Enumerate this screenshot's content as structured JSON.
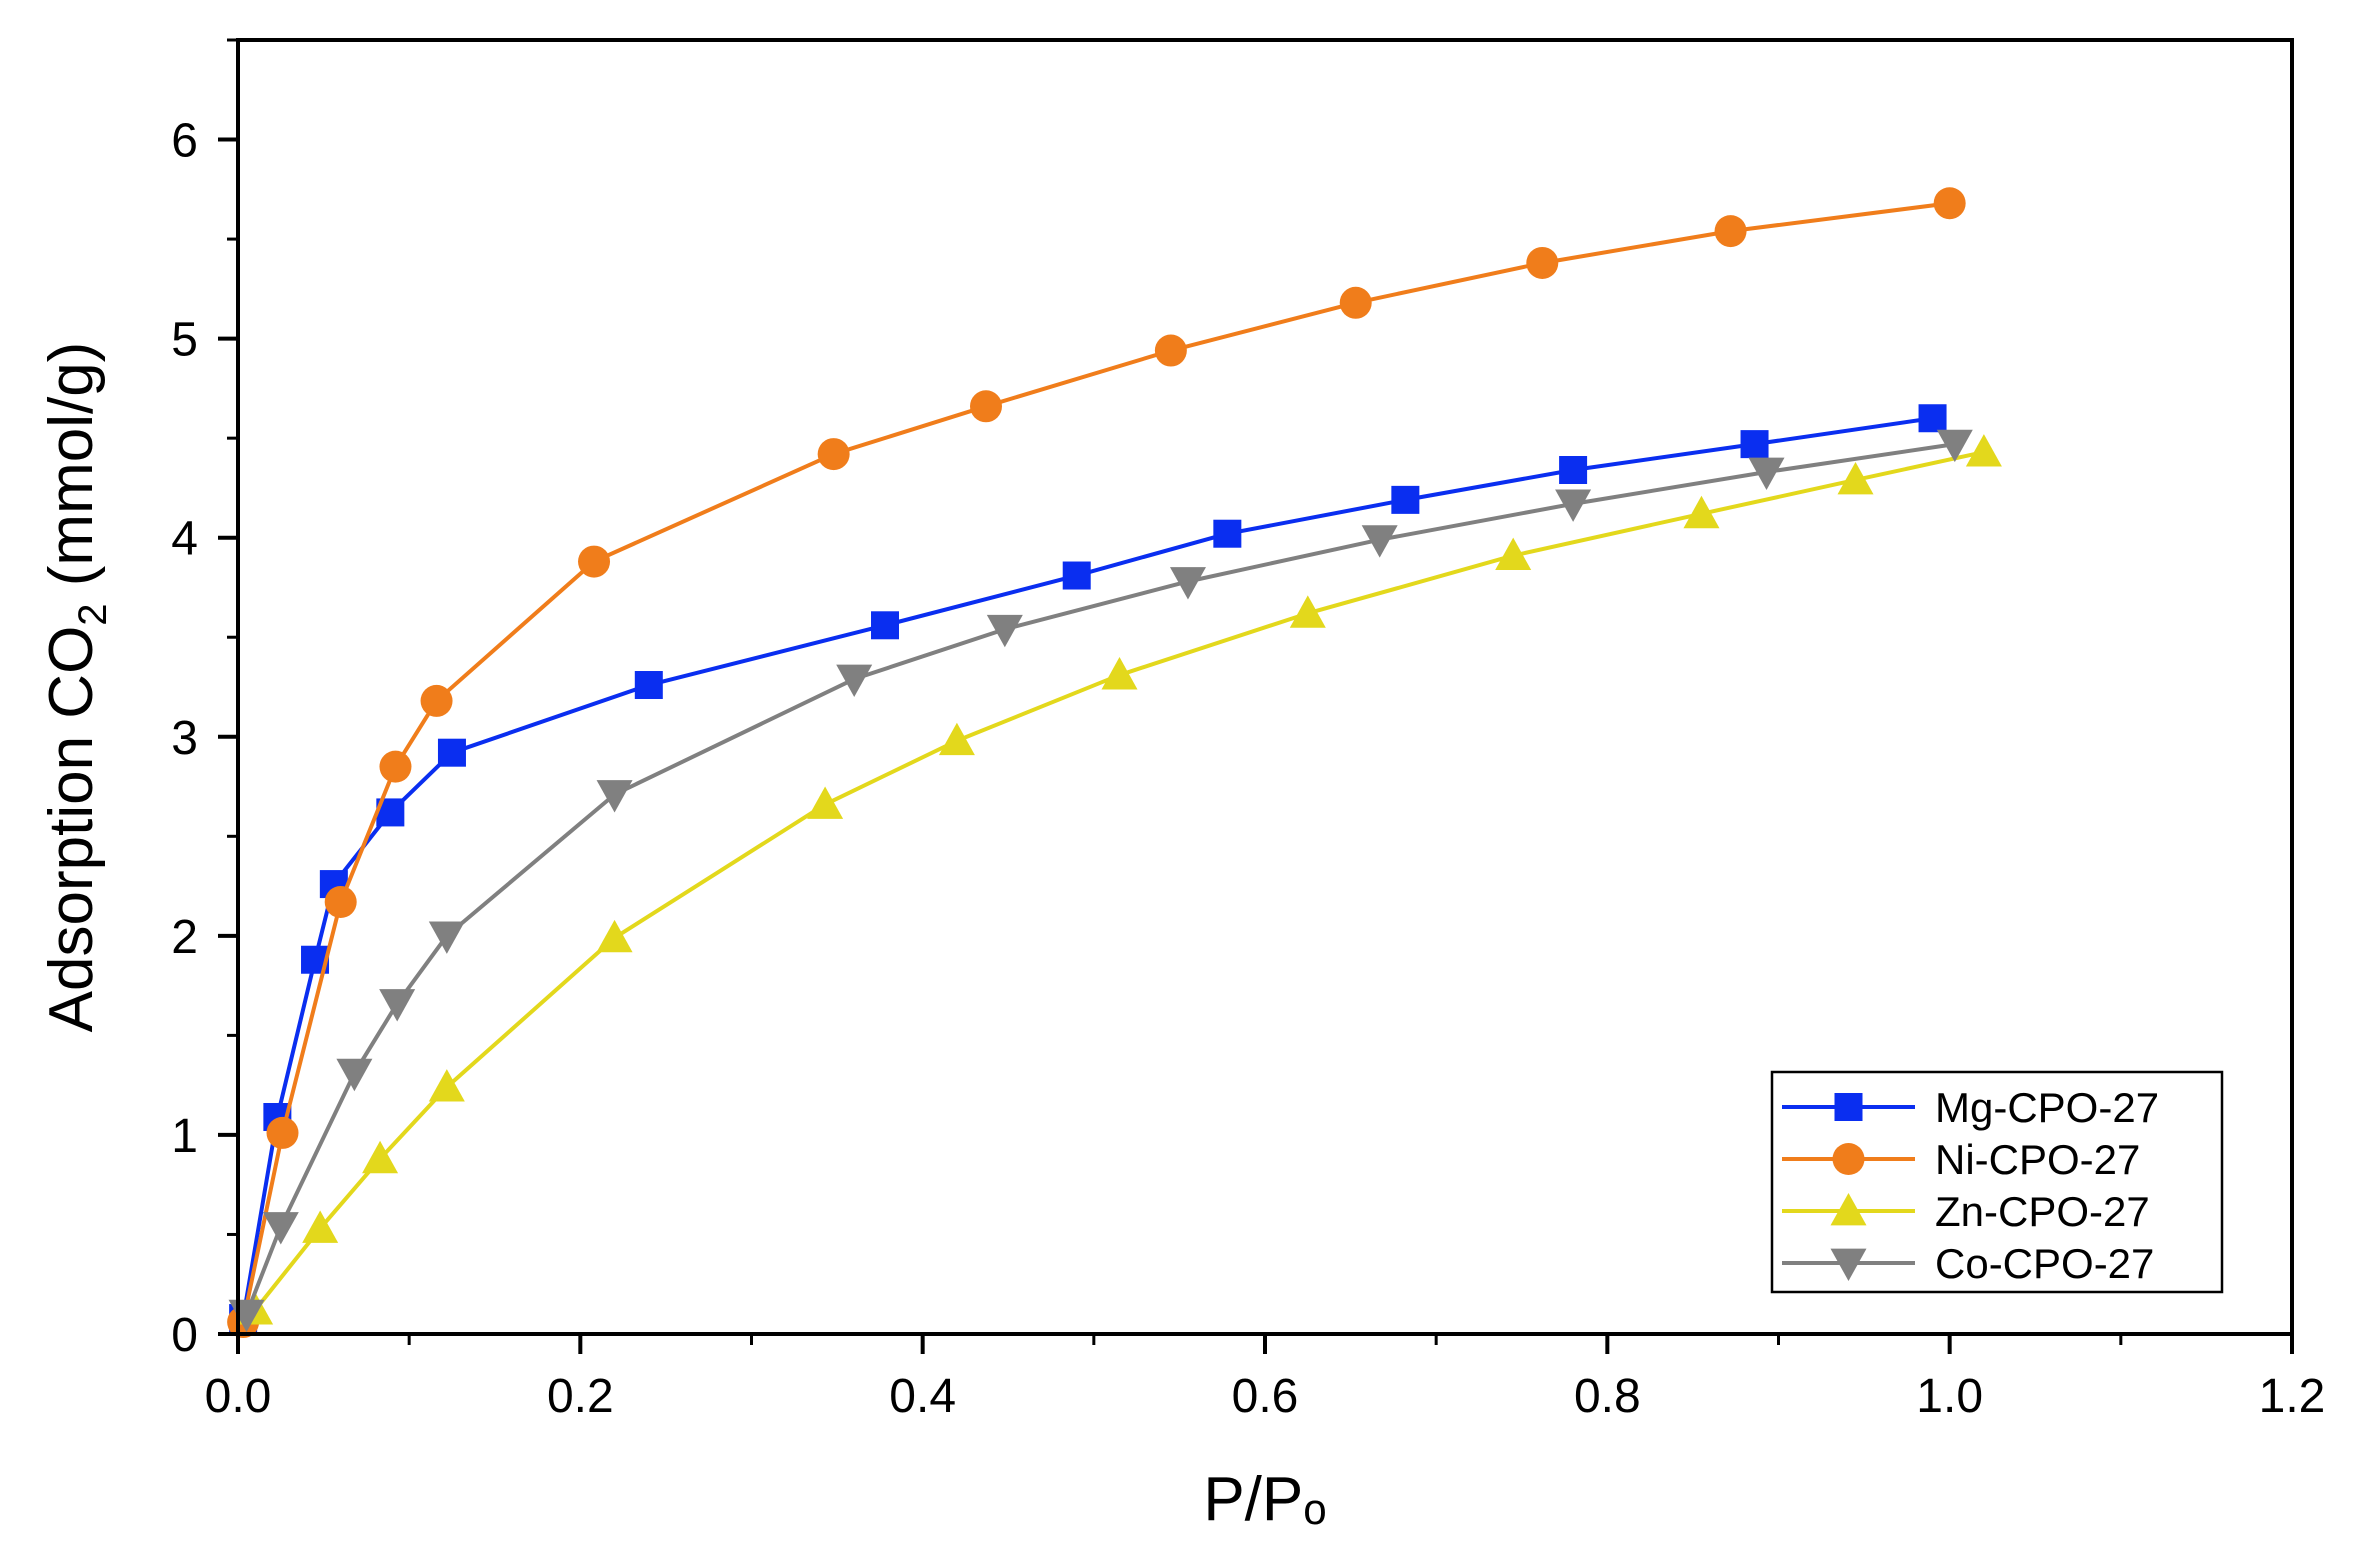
{
  "chart_data": {
    "type": "line",
    "title": "",
    "xlabel": "P/Pₒ",
    "ylabel_main": "Adsorption CO",
    "ylabel_sub": "2",
    "ylabel_tail": " (mmol/g)",
    "xlim": [
      0.0,
      1.2
    ],
    "ylim": [
      0,
      6.5
    ],
    "xticks": [
      0.0,
      0.2,
      0.4,
      0.6,
      0.8,
      1.0,
      1.2
    ],
    "xtick_labels": [
      "0.0",
      "0.2",
      "0.4",
      "0.6",
      "0.8",
      "1.0",
      "1.2"
    ],
    "yticks": [
      0,
      1,
      2,
      3,
      4,
      5,
      6
    ],
    "ytick_labels": [
      "0",
      "1",
      "2",
      "3",
      "4",
      "5",
      "6"
    ],
    "grid": false,
    "legend_position": "bottom-right",
    "series": [
      {
        "name": "Mg-CPO-27",
        "color": "#0a2ef0",
        "marker": "square",
        "x": [
          0.003,
          0.023,
          0.045,
          0.056,
          0.089,
          0.125,
          0.24,
          0.378,
          0.49,
          0.578,
          0.682,
          0.78,
          0.886,
          0.99
        ],
        "y": [
          0.08,
          1.09,
          1.88,
          2.26,
          2.62,
          2.92,
          3.26,
          3.56,
          3.81,
          4.02,
          4.19,
          4.34,
          4.47,
          4.6
        ]
      },
      {
        "name": "Ni-CPO-27",
        "color": "#f07d1b",
        "marker": "circle",
        "x": [
          0.003,
          0.026,
          0.06,
          0.092,
          0.116,
          0.208,
          0.348,
          0.437,
          0.545,
          0.653,
          0.762,
          0.872,
          1.0
        ],
        "y": [
          0.06,
          1.01,
          2.17,
          2.85,
          3.18,
          3.88,
          4.42,
          4.66,
          4.94,
          5.18,
          5.38,
          5.54,
          5.68
        ]
      },
      {
        "name": "Zn-CPO-27",
        "color": "#e3d81c",
        "marker": "triangle-up",
        "x": [
          0.01,
          0.048,
          0.083,
          0.122,
          0.22,
          0.343,
          0.42,
          0.515,
          0.625,
          0.745,
          0.855,
          0.945,
          1.02
        ],
        "y": [
          0.12,
          0.53,
          0.88,
          1.24,
          1.99,
          2.66,
          2.98,
          3.31,
          3.62,
          3.91,
          4.12,
          4.29,
          4.43
        ]
      },
      {
        "name": "Co-CPO-27",
        "color": "#808080",
        "marker": "triangle-down",
        "x": [
          0.005,
          0.025,
          0.068,
          0.093,
          0.122,
          0.22,
          0.36,
          0.448,
          0.555,
          0.667,
          0.78,
          0.893,
          1.003
        ],
        "y": [
          0.1,
          0.54,
          1.31,
          1.66,
          2.0,
          2.71,
          3.29,
          3.54,
          3.78,
          3.99,
          4.17,
          4.33,
          4.47
        ]
      }
    ]
  }
}
